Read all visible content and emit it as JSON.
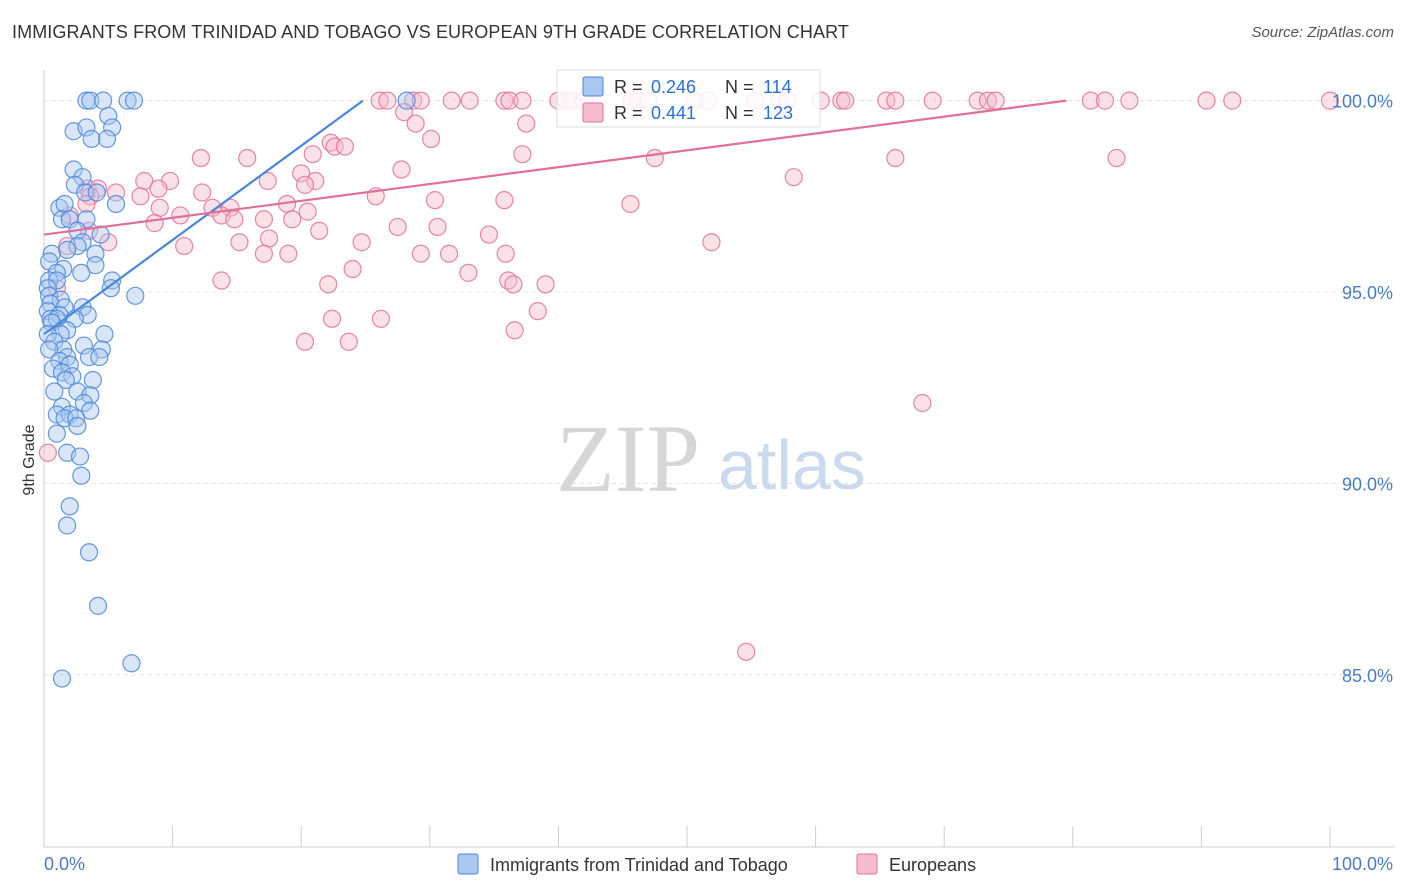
{
  "title": "IMMIGRANTS FROM TRINIDAD AND TOBAGO VS EUROPEAN 9TH GRADE CORRELATION CHART",
  "source": "Source: ZipAtlas.com",
  "watermark": {
    "zip": "ZIP",
    "atlas": "atlas"
  },
  "chart_data": {
    "type": "scatter",
    "title": "IMMIGRANTS FROM TRINIDAD AND TOBAGO VS EUROPEAN 9TH GRADE CORRELATION CHART",
    "xlabel": "",
    "ylabel": "9th Grade",
    "xlim": [
      0,
      100
    ],
    "ylim": [
      80.5,
      100.8
    ],
    "x_tick_labels": [
      "0.0%",
      "100.0%"
    ],
    "y_ticks": [
      100,
      95,
      90,
      85
    ],
    "y_tick_labels": [
      "100.0%",
      "95.0%",
      "90.0%",
      "85.0%"
    ],
    "grid": true,
    "legend_position": "top-center",
    "stats": [
      {
        "series": "Immigrants from Trinidad and Tobago",
        "r_label": "R =",
        "r": "0.246",
        "n_label": "N =",
        "n": "114"
      },
      {
        "series": "Europeans",
        "r_label": "R =",
        "r": "0.441",
        "n_label": "N =",
        "n": "123"
      }
    ],
    "series": [
      {
        "name": "Immigrants from Trinidad and Tobago",
        "color": "#4a86d8",
        "fill": "#a9c7f0",
        "trend": {
          "x": [
            0.0,
            24.8
          ],
          "y": [
            93.9,
            100.0
          ]
        },
        "points": [
          [
            3.3,
            100
          ],
          [
            3.6,
            100
          ],
          [
            4.6,
            100
          ],
          [
            6.5,
            100
          ],
          [
            7.0,
            100
          ],
          [
            28.2,
            100
          ],
          [
            5.0,
            99.6
          ],
          [
            5.3,
            99.3
          ],
          [
            2.3,
            99.2
          ],
          [
            3.3,
            99.3
          ],
          [
            3.7,
            99.0
          ],
          [
            4.9,
            99.0
          ],
          [
            2.3,
            98.2
          ],
          [
            3.0,
            98.0
          ],
          [
            2.4,
            97.8
          ],
          [
            3.2,
            97.6
          ],
          [
            4.1,
            97.6
          ],
          [
            1.2,
            97.2
          ],
          [
            1.6,
            97.3
          ],
          [
            5.6,
            97.3
          ],
          [
            1.4,
            96.9
          ],
          [
            2.0,
            96.9
          ],
          [
            3.3,
            96.9
          ],
          [
            2.6,
            96.6
          ],
          [
            4.4,
            96.5
          ],
          [
            3.0,
            96.3
          ],
          [
            2.6,
            96.2
          ],
          [
            1.8,
            96.1
          ],
          [
            4.0,
            96.0
          ],
          [
            0.6,
            96.0
          ],
          [
            0.4,
            95.8
          ],
          [
            1.5,
            95.6
          ],
          [
            4.0,
            95.7
          ],
          [
            1.0,
            95.5
          ],
          [
            2.9,
            95.5
          ],
          [
            0.4,
            95.3
          ],
          [
            1.0,
            95.3
          ],
          [
            5.3,
            95.3
          ],
          [
            5.2,
            95.1
          ],
          [
            0.3,
            95.1
          ],
          [
            7.1,
            94.9
          ],
          [
            0.4,
            94.9
          ],
          [
            1.3,
            94.8
          ],
          [
            0.5,
            94.7
          ],
          [
            1.6,
            94.6
          ],
          [
            3.0,
            94.6
          ],
          [
            0.3,
            94.5
          ],
          [
            1.2,
            94.4
          ],
          [
            3.4,
            94.4
          ],
          [
            0.5,
            94.3
          ],
          [
            1.0,
            94.3
          ],
          [
            2.4,
            94.3
          ],
          [
            0.6,
            94.2
          ],
          [
            1.8,
            94.0
          ],
          [
            1.3,
            93.9
          ],
          [
            4.7,
            93.9
          ],
          [
            0.3,
            93.9
          ],
          [
            0.8,
            93.7
          ],
          [
            3.1,
            93.6
          ],
          [
            1.5,
            93.5
          ],
          [
            0.4,
            93.5
          ],
          [
            4.5,
            93.5
          ],
          [
            1.8,
            93.3
          ],
          [
            3.5,
            93.3
          ],
          [
            4.3,
            93.3
          ],
          [
            1.2,
            93.2
          ],
          [
            2.0,
            93.1
          ],
          [
            0.7,
            93.0
          ],
          [
            1.4,
            92.9
          ],
          [
            2.2,
            92.8
          ],
          [
            1.7,
            92.7
          ],
          [
            3.8,
            92.7
          ],
          [
            0.8,
            92.4
          ],
          [
            2.6,
            92.4
          ],
          [
            3.6,
            92.3
          ],
          [
            3.1,
            92.1
          ],
          [
            1.4,
            92.0
          ],
          [
            1.0,
            91.8
          ],
          [
            2.0,
            91.8
          ],
          [
            3.6,
            91.9
          ],
          [
            1.6,
            91.7
          ],
          [
            2.5,
            91.7
          ],
          [
            2.6,
            91.5
          ],
          [
            1.0,
            91.3
          ],
          [
            1.8,
            90.8
          ],
          [
            2.8,
            90.7
          ],
          [
            2.9,
            90.2
          ],
          [
            2.0,
            89.4
          ],
          [
            1.8,
            88.9
          ],
          [
            3.5,
            88.2
          ],
          [
            4.2,
            86.8
          ],
          [
            6.8,
            85.3
          ],
          [
            1.4,
            84.9
          ]
        ]
      },
      {
        "name": "Europeans",
        "color": "#e0709a",
        "fill": "#f5bccd",
        "trend": {
          "x": [
            0.0,
            79.5
          ],
          "y": [
            96.5,
            100.0
          ]
        },
        "points": [
          [
            26.1,
            100
          ],
          [
            26.7,
            100
          ],
          [
            28.7,
            100
          ],
          [
            29.3,
            100
          ],
          [
            31.7,
            100
          ],
          [
            33.1,
            100
          ],
          [
            35.8,
            100
          ],
          [
            36.2,
            100
          ],
          [
            37.2,
            100
          ],
          [
            40.0,
            100
          ],
          [
            40.6,
            100
          ],
          [
            41.1,
            100
          ],
          [
            42.0,
            100
          ],
          [
            45.7,
            100
          ],
          [
            46.2,
            100
          ],
          [
            47.0,
            100
          ],
          [
            50.6,
            100
          ],
          [
            51.6,
            100
          ],
          [
            55.3,
            100
          ],
          [
            57.2,
            100
          ],
          [
            57.8,
            100
          ],
          [
            60.4,
            100
          ],
          [
            62.0,
            100
          ],
          [
            62.3,
            100
          ],
          [
            65.5,
            100
          ],
          [
            66.2,
            100
          ],
          [
            69.1,
            100
          ],
          [
            72.6,
            100
          ],
          [
            73.4,
            100
          ],
          [
            74.0,
            100
          ],
          [
            81.4,
            100
          ],
          [
            82.5,
            100
          ],
          [
            84.4,
            100
          ],
          [
            90.4,
            100
          ],
          [
            92.4,
            100
          ],
          [
            100.0,
            100
          ],
          [
            28.0,
            99.7
          ],
          [
            28.9,
            99.4
          ],
          [
            37.5,
            99.4
          ],
          [
            30.1,
            99.0
          ],
          [
            22.3,
            98.9
          ],
          [
            22.6,
            98.8
          ],
          [
            23.4,
            98.8
          ],
          [
            20.9,
            98.6
          ],
          [
            37.2,
            98.6
          ],
          [
            12.2,
            98.5
          ],
          [
            15.8,
            98.5
          ],
          [
            47.5,
            98.5
          ],
          [
            66.2,
            98.5
          ],
          [
            83.4,
            98.5
          ],
          [
            27.8,
            98.2
          ],
          [
            20.0,
            98.1
          ],
          [
            58.3,
            98.0
          ],
          [
            9.8,
            97.9
          ],
          [
            17.4,
            97.9
          ],
          [
            21.1,
            97.9
          ],
          [
            7.8,
            97.9
          ],
          [
            20.3,
            97.8
          ],
          [
            3.4,
            97.7
          ],
          [
            4.2,
            97.7
          ],
          [
            8.9,
            97.7
          ],
          [
            5.6,
            97.6
          ],
          [
            12.3,
            97.6
          ],
          [
            3.6,
            97.5
          ],
          [
            7.5,
            97.5
          ],
          [
            25.8,
            97.5
          ],
          [
            30.4,
            97.4
          ],
          [
            35.8,
            97.4
          ],
          [
            45.6,
            97.3
          ],
          [
            3.3,
            97.3
          ],
          [
            13.1,
            97.2
          ],
          [
            9.0,
            97.2
          ],
          [
            14.5,
            97.2
          ],
          [
            18.9,
            97.3
          ],
          [
            2.0,
            97.0
          ],
          [
            10.6,
            97.0
          ],
          [
            13.8,
            97.0
          ],
          [
            14.8,
            96.9
          ],
          [
            17.1,
            96.9
          ],
          [
            20.5,
            97.1
          ],
          [
            8.6,
            96.8
          ],
          [
            19.3,
            96.9
          ],
          [
            27.5,
            96.7
          ],
          [
            21.4,
            96.6
          ],
          [
            30.6,
            96.7
          ],
          [
            3.5,
            96.6
          ],
          [
            5.0,
            96.3
          ],
          [
            10.9,
            96.2
          ],
          [
            15.2,
            96.3
          ],
          [
            17.5,
            96.4
          ],
          [
            24.7,
            96.3
          ],
          [
            34.6,
            96.5
          ],
          [
            51.9,
            96.3
          ],
          [
            1.8,
            96.2
          ],
          [
            17.1,
            96.0
          ],
          [
            19.0,
            96.0
          ],
          [
            29.3,
            96.0
          ],
          [
            31.5,
            96.0
          ],
          [
            35.9,
            96.0
          ],
          [
            24.0,
            95.6
          ],
          [
            33.0,
            95.5
          ],
          [
            13.8,
            95.3
          ],
          [
            22.1,
            95.2
          ],
          [
            36.1,
            95.3
          ],
          [
            36.5,
            95.2
          ],
          [
            39.0,
            95.2
          ],
          [
            1.0,
            95.1
          ],
          [
            38.4,
            94.5
          ],
          [
            22.4,
            94.3
          ],
          [
            26.2,
            94.3
          ],
          [
            36.6,
            94.0
          ],
          [
            20.3,
            93.7
          ],
          [
            23.7,
            93.7
          ],
          [
            68.3,
            92.1
          ],
          [
            0.3,
            90.8
          ],
          [
            54.6,
            85.6
          ]
        ]
      }
    ]
  },
  "bottom_legend": [
    {
      "label": "Immigrants from Trinidad and Tobago"
    },
    {
      "label": "Europeans"
    }
  ]
}
